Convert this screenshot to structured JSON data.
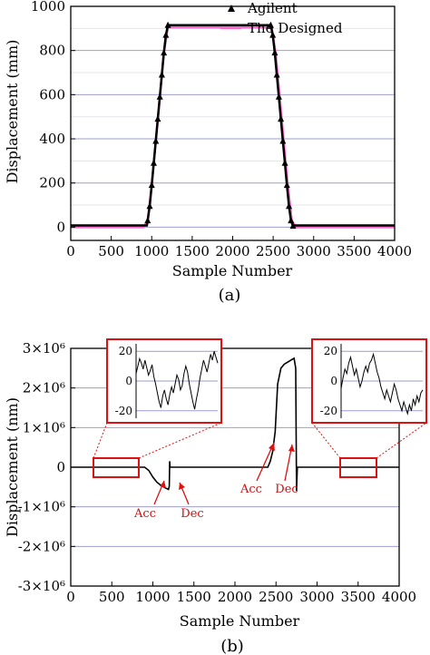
{
  "chart_data": [
    {
      "type": "line",
      "caption": "(a)",
      "xlabel": "Sample Number",
      "ylabel": "Displacement (mm)",
      "xlim": [
        0,
        4000
      ],
      "ylim": [
        -60,
        1000
      ],
      "xticks": [
        "0",
        "500",
        "1000",
        "1500",
        "2000",
        "2500",
        "3000",
        "3500",
        "4000"
      ],
      "yticks": [
        "0",
        "200",
        "400",
        "600",
        "800",
        "1000"
      ],
      "grid": "horizontal",
      "legend": "top-right",
      "series": [
        {
          "name": "Agilent",
          "marker": "triangle",
          "color": "#000000",
          "x": [
            950,
            975,
            1000,
            1025,
            1050,
            1075,
            1100,
            1125,
            1150,
            1175,
            1200,
            2470,
            2495,
            2520,
            2545,
            2570,
            2595,
            2620,
            2645,
            2670,
            2695,
            2720,
            2745
          ],
          "y": [
            30,
            95,
            190,
            290,
            390,
            490,
            590,
            690,
            790,
            870,
            915,
            915,
            870,
            790,
            690,
            590,
            490,
            390,
            290,
            190,
            95,
            30,
            5
          ]
        },
        {
          "name": "The Designed",
          "color": "#ff66cc",
          "x": [
            0,
            900,
            950,
            1000,
            1050,
            1100,
            1150,
            1200,
            2480,
            2530,
            2580,
            2630,
            2680,
            2730,
            2780,
            4000
          ],
          "y": [
            0,
            0,
            30,
            190,
            390,
            590,
            790,
            905,
            905,
            790,
            590,
            390,
            190,
            30,
            0,
            0
          ]
        }
      ]
    },
    {
      "type": "line",
      "caption": "(b)",
      "xlabel": "Sample Number",
      "ylabel": "Displacement (nm)",
      "xlim": [
        0,
        4000
      ],
      "ylim": [
        -3000000,
        3000000
      ],
      "xticks": [
        "0",
        "500",
        "1000",
        "1500",
        "2000",
        "2500",
        "3000",
        "3500",
        "4000"
      ],
      "yticks": [
        "3×10⁶",
        "2×10⁶",
        "1×10⁶",
        "0",
        "-1×10⁶",
        "-2×10⁶",
        "-3×10⁶"
      ],
      "grid": "horizontal",
      "series": [
        {
          "color": "#000000",
          "x": [
            0,
            900,
            950,
            1000,
            1050,
            1100,
            1150,
            1190,
            1200,
            1205,
            1210,
            1220,
            2400,
            2430,
            2460,
            2490,
            2520,
            2560,
            2600,
            2640,
            2680,
            2720,
            2740,
            2750,
            2760,
            4000
          ],
          "y": [
            0,
            0,
            -80000,
            -250000,
            -380000,
            -460000,
            -520000,
            -560000,
            -480000,
            150000,
            0,
            0,
            0,
            150000,
            400000,
            900000,
            2100000,
            2500000,
            2600000,
            2650000,
            2700000,
            2750000,
            2500000,
            -600000,
            0,
            0
          ]
        }
      ],
      "annotations": [
        "Acc",
        "Dec",
        "Acc",
        "Dec"
      ],
      "insets": [
        {
          "yticks": [
            "20",
            "0",
            "-20"
          ],
          "ylim": [
            -25,
            25
          ],
          "values": [
            5,
            10,
            15,
            12,
            8,
            14,
            9,
            4,
            7,
            11,
            3,
            -2,
            -8,
            -14,
            -18,
            -10,
            -6,
            -12,
            -16,
            -9,
            -4,
            -8,
            -2,
            4,
            1,
            -6,
            -3,
            5,
            10,
            6,
            -2,
            -8,
            -14,
            -19,
            -12,
            -6,
            2,
            8,
            14,
            10,
            6,
            12,
            18,
            14,
            20,
            16,
            12
          ]
        },
        {
          "yticks": [
            "20",
            "0",
            "-20"
          ],
          "ylim": [
            -25,
            25
          ],
          "values": [
            -5,
            2,
            8,
            5,
            12,
            16,
            10,
            4,
            8,
            2,
            -4,
            0,
            6,
            10,
            6,
            12,
            14,
            18,
            12,
            6,
            2,
            -4,
            -8,
            -12,
            -6,
            -10,
            -14,
            -8,
            -2,
            -6,
            -12,
            -16,
            -20,
            -14,
            -18,
            -22,
            -16,
            -20,
            -12,
            -16,
            -10,
            -14,
            -8,
            -6
          ]
        }
      ]
    }
  ]
}
